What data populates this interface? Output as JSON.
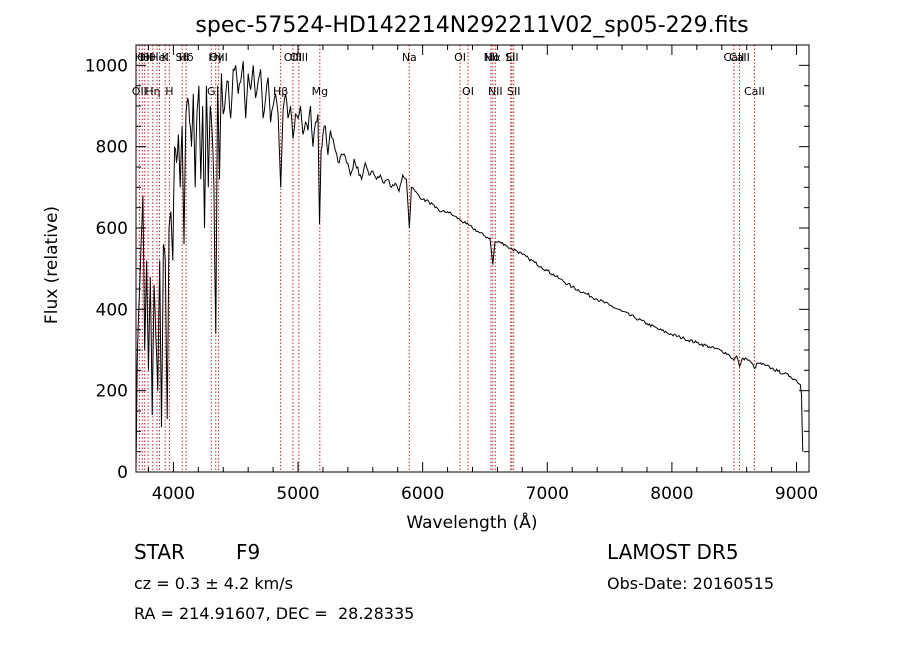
{
  "chart_data": {
    "type": "line",
    "title": "spec-57524-HD142214N292211V02_sp05-229.fits",
    "xlabel": "Wavelength (Å)",
    "ylabel": "Flux (relative)",
    "xlim": [
      3700,
      9100
    ],
    "ylim": [
      0,
      1050
    ],
    "xticks": [
      4000,
      5000,
      6000,
      7000,
      8000,
      9000
    ],
    "yticks": [
      0,
      200,
      400,
      600,
      800,
      1000
    ],
    "grid": false,
    "line_color": "#000000",
    "marker_color": "#cc2222",
    "series": [
      {
        "x": [
          3700,
          3710,
          3725,
          3740,
          3755,
          3770,
          3785,
          3800,
          3815,
          3830,
          3845,
          3860,
          3875,
          3890,
          3905,
          3920,
          3935,
          3950,
          3965,
          3980,
          3995,
          4010,
          4025,
          4040,
          4055,
          4070,
          4085,
          4100,
          4115,
          4130,
          4145,
          4160,
          4175,
          4190,
          4205,
          4220,
          4235,
          4250,
          4265,
          4280,
          4295,
          4310,
          4325,
          4340,
          4355,
          4370,
          4385,
          4400,
          4420,
          4440,
          4460,
          4480,
          4500,
          4520,
          4540,
          4560,
          4580,
          4600,
          4620,
          4640,
          4660,
          4680,
          4700,
          4720,
          4740,
          4760,
          4780,
          4800,
          4820,
          4840,
          4861,
          4880,
          4900,
          4920,
          4940,
          4960,
          4980,
          5000,
          5020,
          5040,
          5060,
          5080,
          5100,
          5120,
          5140,
          5160,
          5172,
          5185,
          5200,
          5220,
          5240,
          5260,
          5280,
          5300,
          5330,
          5360,
          5390,
          5420,
          5450,
          5480,
          5510,
          5540,
          5570,
          5600,
          5630,
          5660,
          5690,
          5720,
          5750,
          5780,
          5810,
          5840,
          5870,
          5893,
          5910,
          5940,
          5970,
          6000,
          6050,
          6100,
          6150,
          6200,
          6250,
          6300,
          6350,
          6400,
          6450,
          6500,
          6540,
          6563,
          6580,
          6620,
          6660,
          6700,
          6750,
          6800,
          6850,
          6900,
          6950,
          7000,
          7100,
          7200,
          7300,
          7400,
          7500,
          7600,
          7700,
          7800,
          7900,
          8000,
          8100,
          8200,
          8300,
          8400,
          8450,
          8498,
          8520,
          8542,
          8570,
          8600,
          8640,
          8662,
          8690,
          8750,
          8800,
          8850,
          8900,
          8950,
          9000,
          9030,
          9040,
          9050
        ],
        "y": [
          10,
          270,
          420,
          560,
          680,
          300,
          520,
          250,
          480,
          140,
          460,
          330,
          200,
          520,
          110,
          560,
          520,
          130,
          600,
          640,
          520,
          800,
          760,
          830,
          700,
          850,
          560,
          880,
          920,
          860,
          800,
          930,
          700,
          890,
          950,
          720,
          900,
          600,
          950,
          700,
          900,
          840,
          700,
          340,
          950,
          720,
          980,
          880,
          930,
          960,
          870,
          990,
          1000,
          930,
          960,
          1010,
          870,
          980,
          940,
          1000,
          920,
          960,
          990,
          870,
          920,
          970,
          860,
          900,
          930,
          880,
          700,
          890,
          930,
          870,
          900,
          820,
          880,
          870,
          900,
          830,
          860,
          840,
          900,
          800,
          860,
          880,
          610,
          790,
          830,
          850,
          780,
          840,
          820,
          790,
          760,
          780,
          760,
          730,
          770,
          750,
          720,
          760,
          730,
          740,
          720,
          730,
          710,
          720,
          700,
          710,
          690,
          730,
          720,
          600,
          700,
          690,
          680,
          670,
          665,
          650,
          640,
          640,
          630,
          620,
          610,
          600,
          590,
          580,
          575,
          510,
          565,
          565,
          560,
          550,
          545,
          535,
          525,
          515,
          505,
          495,
          475,
          455,
          440,
          425,
          410,
          395,
          380,
          365,
          350,
          338,
          328,
          318,
          308,
          298,
          290,
          275,
          285,
          260,
          280,
          278,
          268,
          255,
          268,
          262,
          255,
          248,
          242,
          235,
          225,
          215,
          190,
          50
        ]
      }
    ],
    "lines": [
      {
        "lambda": 3727,
        "label": "OII",
        "row": 2
      },
      {
        "lambda": 3750,
        "label": "Hθ",
        "row": 1
      },
      {
        "lambda": 3770,
        "label": "OII",
        "row": 1
      },
      {
        "lambda": 3797,
        "label": "Hθ",
        "row": 1
      },
      {
        "lambda": 3835,
        "label": "Hη",
        "row": 2
      },
      {
        "lambda": 3869,
        "label": "",
        "row": 0
      },
      {
        "lambda": 3889,
        "label": "HeI",
        "row": 1
      },
      {
        "lambda": 3934,
        "label": "K",
        "row": 1
      },
      {
        "lambda": 3968,
        "label": "H",
        "row": 2
      },
      {
        "lambda": 4071,
        "label": "SII",
        "row": 1
      },
      {
        "lambda": 4102,
        "label": "Hδ",
        "row": 1
      },
      {
        "lambda": 4304,
        "label": "G",
        "row": 2
      },
      {
        "lambda": 4340,
        "label": "Hγ",
        "row": 1
      },
      {
        "lambda": 4363,
        "label": "OIII",
        "row": 1
      },
      {
        "lambda": 4861,
        "label": "Hβ",
        "row": 2
      },
      {
        "lambda": 4959,
        "label": "OIII",
        "row": 1
      },
      {
        "lambda": 5007,
        "label": "OIII",
        "row": 1
      },
      {
        "lambda": 5175,
        "label": "Mg",
        "row": 2
      },
      {
        "lambda": 5893,
        "label": "Na",
        "row": 1
      },
      {
        "lambda": 6300,
        "label": "OI",
        "row": 1
      },
      {
        "lambda": 6364,
        "label": "OI",
        "row": 2
      },
      {
        "lambda": 6548,
        "label": "NII",
        "row": 1
      },
      {
        "lambda": 6563,
        "label": "Hα",
        "row": 1
      },
      {
        "lambda": 6583,
        "label": "NII",
        "row": 2
      },
      {
        "lambda": 6707,
        "label": "Li",
        "row": 1
      },
      {
        "lambda": 6716,
        "label": "SII",
        "row": 1
      },
      {
        "lambda": 6731,
        "label": "SII",
        "row": 2
      },
      {
        "lambda": 8498,
        "label": "CaII",
        "row": 1
      },
      {
        "lambda": 8542,
        "label": "CaII",
        "row": 1
      },
      {
        "lambda": 8662,
        "label": "CaII",
        "row": 2
      }
    ]
  },
  "footer": {
    "object_type": "STAR",
    "subclass": "F9",
    "survey": "LAMOST DR5",
    "redshift": "cz = 0.3 ± 4.2 km/s",
    "obs_date": "Obs-Date: 20160515",
    "coords": "RA = 214.91607, DEC =  28.28335"
  }
}
